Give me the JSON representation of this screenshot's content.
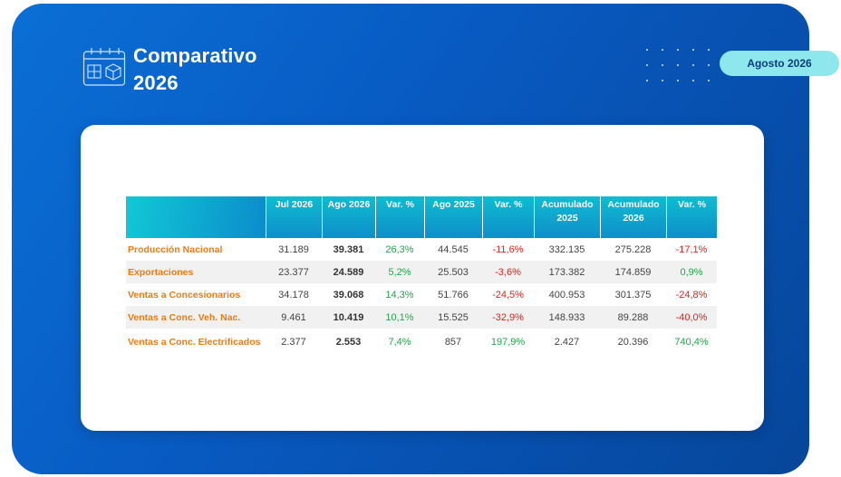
{
  "header": {
    "title_line1": "Comparativo",
    "title_line2": "2026",
    "period_badge": "Agosto 2026",
    "icon": "calendar-cube-icon"
  },
  "colors": {
    "panel_blue": "#0859c0",
    "badge_bg": "#8fe7ee",
    "header_cyan": "#0fbcd2",
    "label_orange": "#f07a12",
    "positive_green": "#21a64a",
    "negative_red": "#e0231c"
  },
  "table": {
    "columns": [
      "Jul 2026",
      "Ago 2026",
      "Var. %",
      "Ago 2025",
      "Var. %",
      "Acumulado 2025",
      "Acumulado 2026",
      "Var. %"
    ],
    "rows": [
      {
        "label": "Producción Nacional",
        "jul2026": "31.189",
        "ago2026": "39.381",
        "var1": "26,3%",
        "ago2025": "44.545",
        "var2": "-11,6%",
        "acum2025": "332.135",
        "acum2026": "275.228",
        "var3": "-17,1%"
      },
      {
        "label": "Exportaciones",
        "jul2026": "23.377",
        "ago2026": "24.589",
        "var1": "5,2%",
        "ago2025": "25.503",
        "var2": "-3,6%",
        "acum2025": "173.382",
        "acum2026": "174.859",
        "var3": "0,9%"
      },
      {
        "label": "Ventas a Concesionarios",
        "jul2026": "34.178",
        "ago2026": "39.068",
        "var1": "14,3%",
        "ago2025": "51.766",
        "var2": "-24,5%",
        "acum2025": "400.953",
        "acum2026": "301.375",
        "var3": "-24,8%"
      },
      {
        "label": "Ventas a Conc. Veh. Nac.",
        "jul2026": "9.461",
        "ago2026": "10.419",
        "var1": "10,1%",
        "ago2025": "15.525",
        "var2": "-32,9%",
        "acum2025": "148.933",
        "acum2026": "89.288",
        "var3": "-40,0%"
      },
      {
        "label": "Ventas a Conc. Electrificados",
        "jul2026": "2.377",
        "ago2026": "2.553",
        "var1": "7,4%",
        "ago2025": "857",
        "var2": "197,9%",
        "acum2025": "2.427",
        "acum2026": "20.396",
        "var3": "740,4%"
      }
    ]
  }
}
